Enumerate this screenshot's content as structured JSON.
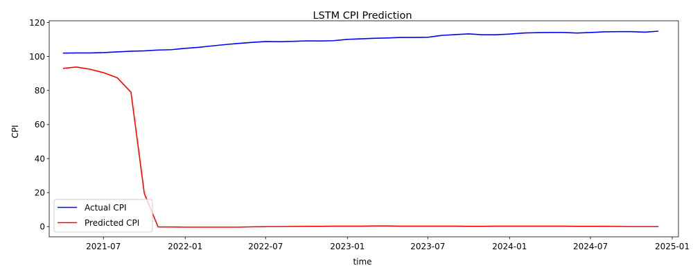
{
  "chart_data": {
    "type": "line",
    "title": "LSTM CPI Prediction",
    "xlabel": "time",
    "ylabel": "CPI",
    "xlim": [
      "2021-03-01",
      "2025-01-15"
    ],
    "ylim": [
      -6,
      121
    ],
    "yticks": [
      0,
      20,
      40,
      60,
      80,
      100,
      120
    ],
    "xticks": [
      "2021-07",
      "2022-01",
      "2022-07",
      "2023-01",
      "2023-07",
      "2024-01",
      "2024-07",
      "2025-01"
    ],
    "grid": false,
    "legend": "lower-left",
    "x": [
      "2021-04",
      "2021-05",
      "2021-06",
      "2021-07",
      "2021-08",
      "2021-09",
      "2021-10",
      "2021-11",
      "2021-12",
      "2022-01",
      "2022-02",
      "2022-03",
      "2022-04",
      "2022-05",
      "2022-06",
      "2022-07",
      "2022-08",
      "2022-09",
      "2022-10",
      "2022-11",
      "2022-12",
      "2023-01",
      "2023-02",
      "2023-03",
      "2023-04",
      "2023-05",
      "2023-06",
      "2023-07",
      "2023-08",
      "2023-09",
      "2023-10",
      "2023-11",
      "2023-12",
      "2024-01",
      "2024-02",
      "2024-03",
      "2024-04",
      "2024-05",
      "2024-06",
      "2024-07",
      "2024-08",
      "2024-09",
      "2024-10",
      "2024-11",
      "2024-12"
    ],
    "series": [
      {
        "name": "Actual CPI",
        "color": "#0000ff",
        "values": [
          102.0,
          102.1,
          102.1,
          102.3,
          102.7,
          103.1,
          103.3,
          103.8,
          104.0,
          104.8,
          105.4,
          106.2,
          107.0,
          107.7,
          108.3,
          108.8,
          108.7,
          108.9,
          109.2,
          109.1,
          109.3,
          110.1,
          110.4,
          110.7,
          110.9,
          111.2,
          111.2,
          111.3,
          112.4,
          112.9,
          113.3,
          112.8,
          112.8,
          113.2,
          113.8,
          114.0,
          114.1,
          114.1,
          113.8,
          114.1,
          114.5,
          114.6,
          114.6,
          114.3,
          114.9
        ]
      },
      {
        "name": "Predicted CPI",
        "color": "#ff0000",
        "values": [
          93.0,
          93.8,
          92.5,
          90.5,
          87.5,
          79.0,
          19.5,
          -0.2,
          -0.2,
          -0.3,
          -0.3,
          -0.3,
          -0.3,
          -0.3,
          -0.1,
          0.0,
          0.0,
          0.1,
          0.2,
          0.2,
          0.3,
          0.3,
          0.3,
          0.4,
          0.4,
          0.3,
          0.3,
          0.3,
          0.3,
          0.3,
          0.2,
          0.2,
          0.3,
          0.3,
          0.3,
          0.3,
          0.3,
          0.3,
          0.2,
          0.2,
          0.2,
          0.1,
          0.0,
          0.0,
          0.0
        ]
      }
    ]
  }
}
